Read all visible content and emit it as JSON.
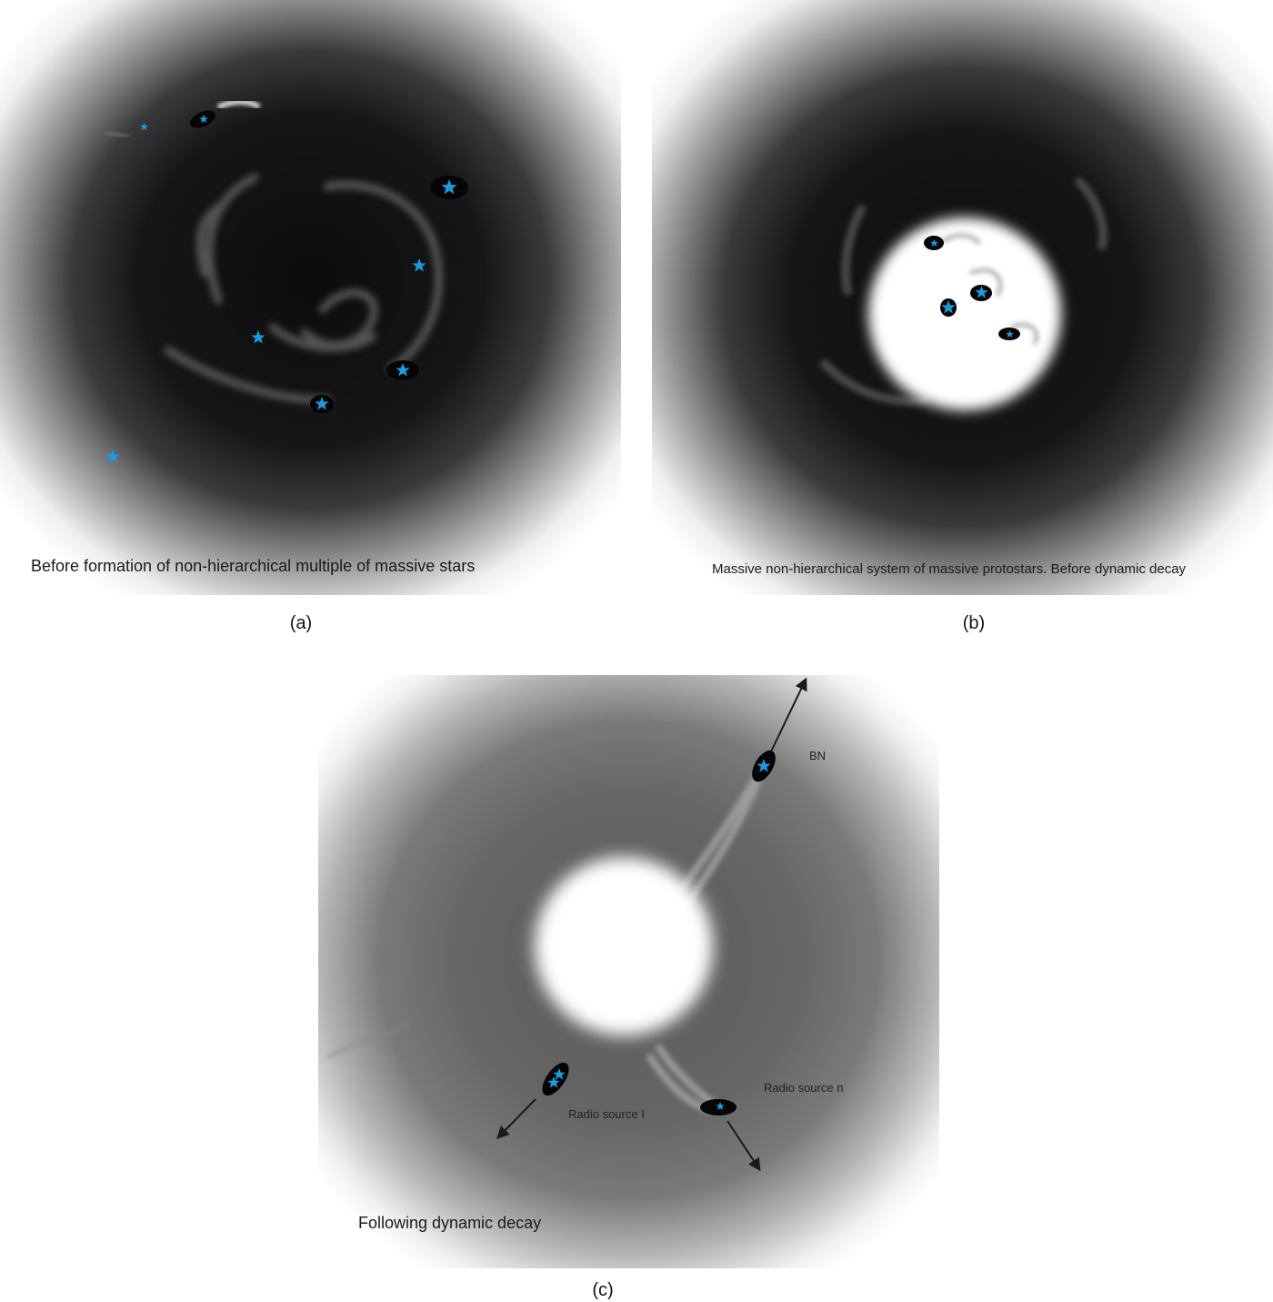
{
  "panels": {
    "a": {
      "label": "(a)",
      "caption": "Before formation of non-hierarchical  multiple of massive stars"
    },
    "b": {
      "label": "(b)",
      "caption": "Massive non-hierarchical system of massive protostars. Before dynamic decay"
    },
    "c": {
      "label": "(c)",
      "caption": "Following dynamic decay",
      "sources": {
        "bn": "BN",
        "radio_i": "Radio source I",
        "radio_n": "Radio source n"
      }
    }
  },
  "colors": {
    "star": "#1a9be0",
    "cloud_dark": "#101010",
    "arrow": "#1a1a1a"
  }
}
